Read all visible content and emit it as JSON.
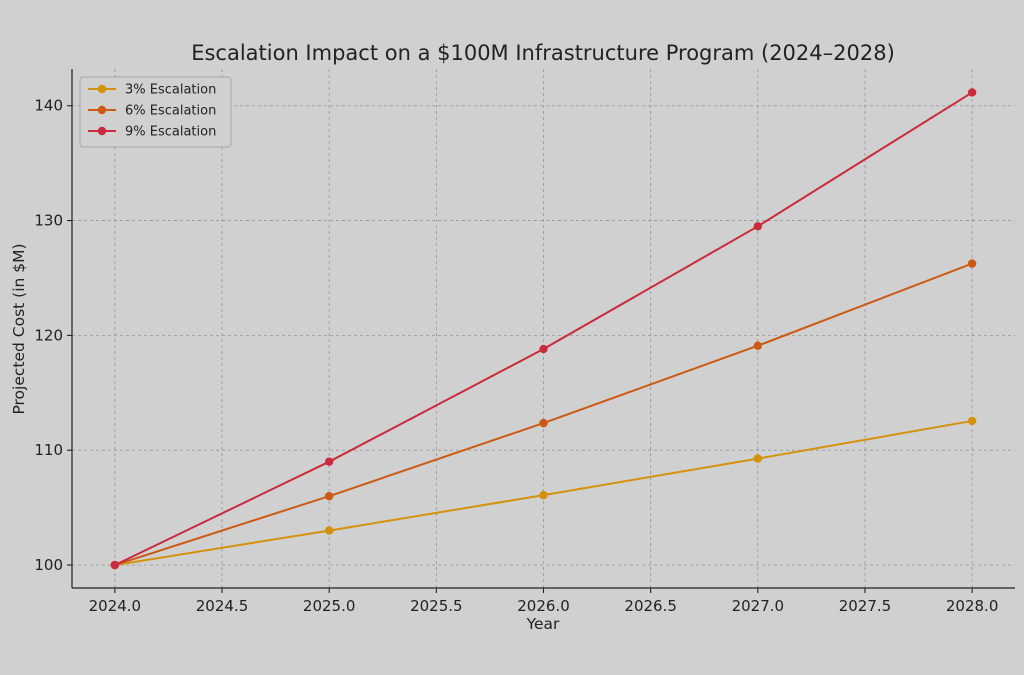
{
  "chart_data": {
    "type": "line",
    "title": "Escalation Impact on a $100M Infrastructure Program (2024–2028)",
    "xlabel": "Year",
    "ylabel": "Projected Cost (in $M)",
    "xlim": [
      2023.8,
      2028.2
    ],
    "ylim": [
      98.0,
      143.2
    ],
    "x_ticks": [
      2024.0,
      2024.5,
      2025.0,
      2025.5,
      2026.0,
      2026.5,
      2027.0,
      2027.5,
      2028.0
    ],
    "x_tick_labels": [
      "2024.0",
      "2024.5",
      "2025.0",
      "2025.5",
      "2026.0",
      "2026.5",
      "2027.0",
      "2027.5",
      "2028.0"
    ],
    "y_ticks": [
      100,
      110,
      120,
      130,
      140
    ],
    "y_tick_labels": [
      "100",
      "110",
      "120",
      "130",
      "140"
    ],
    "grid": true,
    "legend_position": "top-left",
    "x": [
      2024,
      2025,
      2026,
      2027,
      2028
    ],
    "series": [
      {
        "name": "3% Escalation",
        "color": "#d4910a",
        "values": [
          100.0,
          103.0,
          106.09,
          109.27,
          112.55
        ]
      },
      {
        "name": "6% Escalation",
        "color": "#cc5a14",
        "values": [
          100.0,
          106.0,
          112.36,
          119.1,
          126.25
        ]
      },
      {
        "name": "9% Escalation",
        "color": "#c92a3c",
        "values": [
          100.0,
          109.0,
          118.81,
          129.5,
          141.16
        ]
      }
    ]
  }
}
